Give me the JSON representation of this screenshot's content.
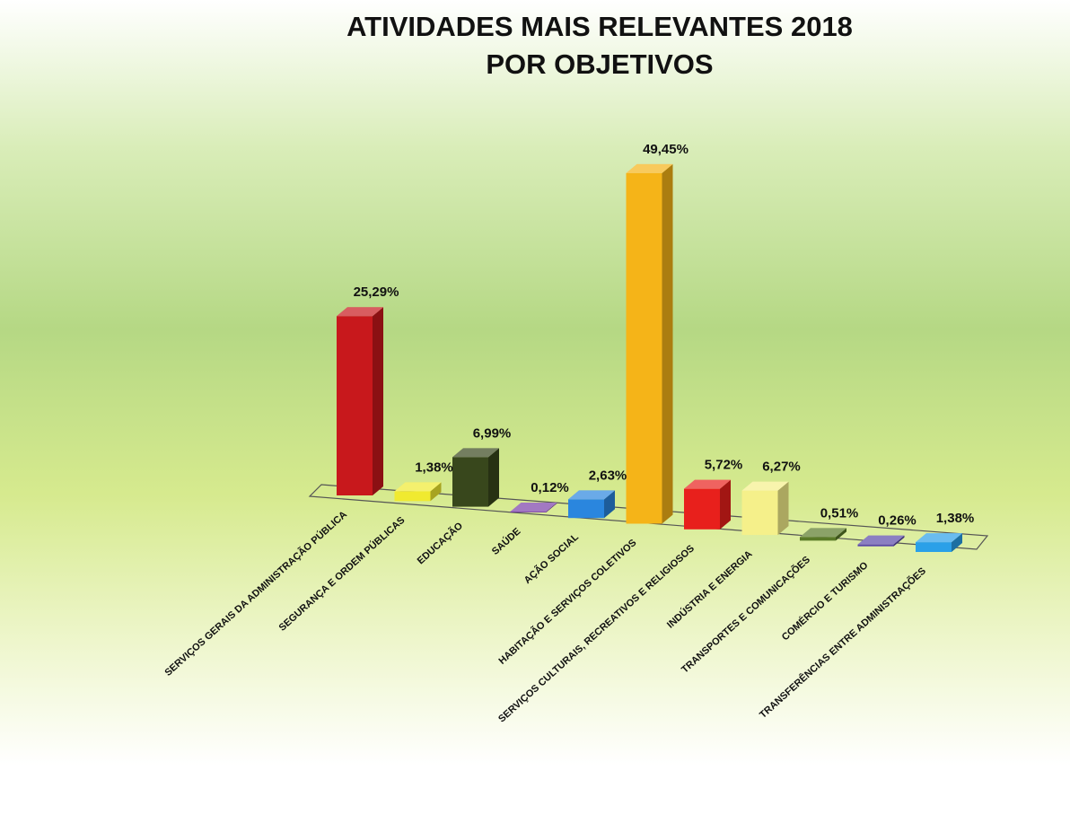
{
  "chart_data": {
    "type": "bar3d",
    "title": "ATIVIDADES MAIS RELEVANTES 2018",
    "subtitle": "POR OBJETIVOS",
    "categories": [
      "SERVIÇOS GERAIS DA ADMINISTRAÇÃO PÚBLICA",
      "SEGURANÇA E ORDEM PÚBLICAS",
      "EDUCAÇÃO",
      "SAÚDE",
      "AÇÃO SOCIAL",
      "HABITAÇÃO E SERVIÇOS COLETIVOS",
      "SERVIÇOS CULTURAIS, RECREATIVOS E RELIGIOSOS",
      "INDÚSTRIA E ENERGIA",
      "TRANSPORTES E COMUNICAÇÕES",
      "COMÉRCIO E TURISMO",
      "TRANSFERÊNCIAS ENTRE ADMINISTRAÇÕES"
    ],
    "values": [
      25.29,
      1.38,
      6.99,
      0.12,
      2.63,
      49.45,
      5.72,
      6.27,
      0.51,
      0.26,
      1.38
    ],
    "value_labels": [
      "25,29%",
      "1,38%",
      "6,99%",
      "0,12%",
      "2,63%",
      "49,45%",
      "5,72%",
      "6,27%",
      "0,51%",
      "0,26%",
      "1,38%"
    ],
    "colors": [
      "#c8181c",
      "#f0ea30",
      "#38471c",
      "#7a3fa8",
      "#2a86de",
      "#f5b418",
      "#e8201c",
      "#f5f08a",
      "#5a7a28",
      "#5a48a8",
      "#2aa0e8"
    ]
  }
}
